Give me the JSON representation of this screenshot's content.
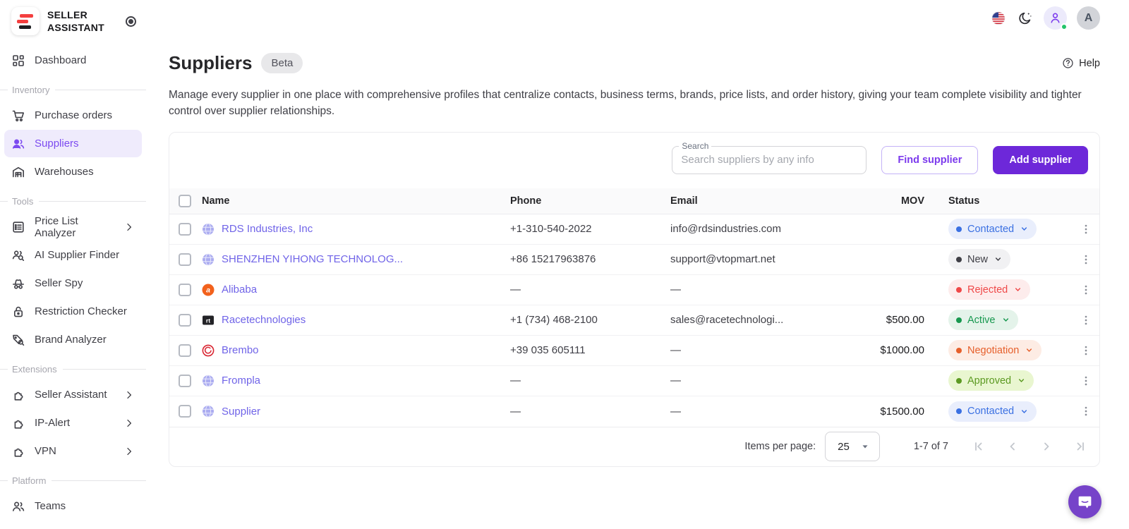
{
  "brand": {
    "line1": "SELLER",
    "line2": "ASSISTANT"
  },
  "sidebar": {
    "items": [
      {
        "type": "link",
        "id": "dashboard",
        "label": "Dashboard",
        "icon": "dashboard-icon"
      },
      {
        "type": "section",
        "label": "Inventory"
      },
      {
        "type": "link",
        "id": "purchase-orders",
        "label": "Purchase orders",
        "icon": "cart-icon"
      },
      {
        "type": "link",
        "id": "suppliers",
        "label": "Suppliers",
        "icon": "people-icon",
        "active": true
      },
      {
        "type": "link",
        "id": "warehouses",
        "label": "Warehouses",
        "icon": "warehouse-icon"
      },
      {
        "type": "section",
        "label": "Tools"
      },
      {
        "type": "link",
        "id": "price-list-analyzer",
        "label": "Price List Analyzer",
        "icon": "list-icon",
        "chevron": true
      },
      {
        "type": "link",
        "id": "ai-supplier-finder",
        "label": "AI Supplier Finder",
        "icon": "people-search-icon"
      },
      {
        "type": "link",
        "id": "seller-spy",
        "label": "Seller Spy",
        "icon": "spy-icon"
      },
      {
        "type": "link",
        "id": "restriction-checker",
        "label": "Restriction Checker",
        "icon": "lock-icon"
      },
      {
        "type": "link",
        "id": "brand-analyzer",
        "label": "Brand Analyzer",
        "icon": "tag-search-icon"
      },
      {
        "type": "section",
        "label": "Extensions"
      },
      {
        "type": "link",
        "id": "seller-assistant",
        "label": "Seller Assistant",
        "icon": "puzzle-icon",
        "chevron": true
      },
      {
        "type": "link",
        "id": "ip-alert",
        "label": "IP-Alert",
        "icon": "puzzle-icon",
        "chevron": true
      },
      {
        "type": "link",
        "id": "vpn",
        "label": "VPN",
        "icon": "puzzle-icon",
        "chevron": true
      },
      {
        "type": "section",
        "label": "Platform"
      },
      {
        "type": "link",
        "id": "teams",
        "label": "Teams",
        "icon": "people-icon"
      }
    ]
  },
  "header": {
    "help_label": "Help",
    "avatar_letter": "A"
  },
  "page": {
    "title": "Suppliers",
    "badge": "Beta",
    "description": "Manage every supplier in one place with comprehensive profiles that centralize contacts, business terms, brands, price lists, and order history, giving your team complete visibility and tighter control over supplier relationships."
  },
  "toolbar": {
    "search_label": "Search",
    "search_placeholder": "Search suppliers by any info",
    "find_button": "Find supplier",
    "add_button": "Add supplier"
  },
  "table": {
    "columns": {
      "name": "Name",
      "phone": "Phone",
      "email": "Email",
      "mov": "MOV",
      "status": "Status"
    },
    "rows": [
      {
        "name": "RDS Industries, Inc",
        "icon": "globe-icon",
        "phone": "+1-310-540-2022",
        "email": "info@rdsindustries.com",
        "mov": "",
        "status": "Contacted"
      },
      {
        "name": "SHENZHEN YIHONG TECHNOLOG...",
        "icon": "globe-icon",
        "phone": "+86 15217963876",
        "email": "support@vtopmart.net",
        "mov": "",
        "status": "New"
      },
      {
        "name": "Alibaba",
        "icon": "alibaba-icon",
        "phone": "—",
        "email": "—",
        "mov": "",
        "status": "Rejected"
      },
      {
        "name": "Racetechnologies",
        "icon": "racetech-icon",
        "phone": "+1 (734) 468-2100",
        "email": "sales@racetechnologi...",
        "mov": "$500.00",
        "status": "Active"
      },
      {
        "name": "Brembo",
        "icon": "brembo-icon",
        "phone": "+39 035 605111",
        "email": "—",
        "mov": "$1000.00",
        "status": "Negotiation"
      },
      {
        "name": "Frompla",
        "icon": "globe-icon",
        "phone": "—",
        "email": "—",
        "mov": "",
        "status": "Approved"
      },
      {
        "name": "Supplier",
        "icon": "globe-icon",
        "phone": "—",
        "email": "—",
        "mov": "$1500.00",
        "status": "Contacted"
      }
    ],
    "status_styles": {
      "Contacted": {
        "bg": "#e9eefc",
        "fg": "#3a70e2"
      },
      "New": {
        "bg": "#f1f1f3",
        "fg": "#3f3f46"
      },
      "Rejected": {
        "bg": "#fdecec",
        "fg": "#ef4848"
      },
      "Active": {
        "bg": "#e4f3ea",
        "fg": "#17984f"
      },
      "Negotiation": {
        "bg": "#fdece4",
        "fg": "#e65f2b"
      },
      "Approved": {
        "bg": "#e9f6d0",
        "fg": "#5c9a22"
      }
    }
  },
  "pagination": {
    "items_per_page_label": "Items per page:",
    "page_size": "25",
    "range_label": "1-7 of 7"
  },
  "colors": {
    "accent": "#6d28d9",
    "link": "#7064e8",
    "active_nav": "#7c4af0"
  }
}
